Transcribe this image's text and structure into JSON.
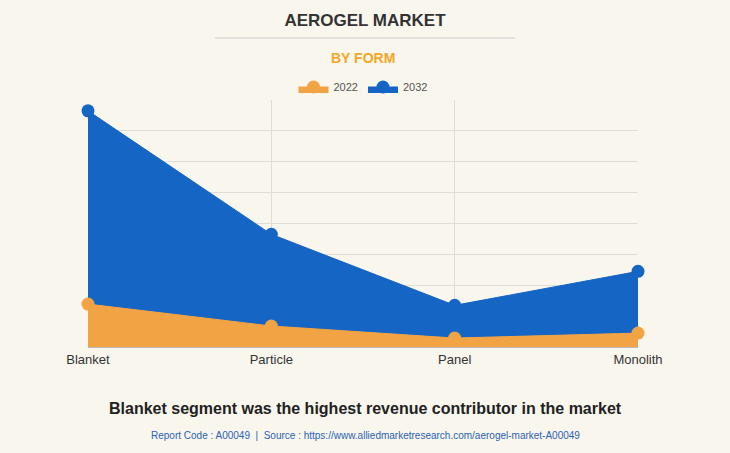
{
  "chart_data": {
    "type": "area",
    "title": "AEROGEL MARKET",
    "subtitle": "BY FORM",
    "categories": [
      "Blanket",
      "Particle",
      "Panel",
      "Monolith"
    ],
    "series": [
      {
        "name": "2022",
        "color": "#f2a444",
        "values": [
          1.39,
          0.68,
          0.29,
          0.45
        ]
      },
      {
        "name": "2032",
        "color": "#1565c4",
        "values": [
          7.65,
          3.65,
          1.35,
          2.45
        ]
      }
    ],
    "ylim": [
      0,
      8
    ],
    "yticks": [
      0,
      1,
      2,
      3,
      4,
      5,
      6,
      7,
      8
    ],
    "grid": true,
    "tick_labels": "x",
    "legend": "top",
    "marker": "circle",
    "annotations": [
      "Blanket segment was the highest revenue contributor in the market",
      "Report Code : A00049  |  Source : https://www.alliedmarketresearch.com/aerogel-market-A00049"
    ]
  }
}
